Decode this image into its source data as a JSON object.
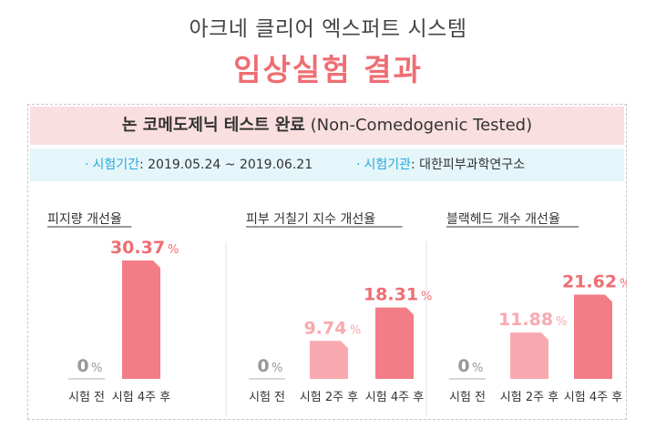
{
  "header": {
    "subtitle": "아크네 클리어 엑스퍼트 시스템",
    "title": "임상실험 결과"
  },
  "banner": {
    "bold": "논 코메도제닉 테스트 완료",
    "normal": "(Non-Comedogenic Tested)"
  },
  "info": {
    "period_label": "시험기간",
    "period_value": ": 2019.05.24 ~ 2019.06.21",
    "org_label": "시험기관",
    "org_value": ": 대한피부과학연구소"
  },
  "colors": {
    "accent": "#ee6e73",
    "bar_dark": "#f27d86",
    "bar_light": "#f8a9af",
    "info_bg": "#e5f6fb",
    "banner_bg": "#fadfe0",
    "label_blue": "#28a9d9"
  },
  "chart_data": [
    {
      "type": "bar",
      "title": "피지량 개선율",
      "categories": [
        "시험 전",
        "시험 4주 후"
      ],
      "values": [
        0,
        30.37
      ],
      "value_labels": [
        "0",
        "30.37"
      ],
      "unit": "%"
    },
    {
      "type": "bar",
      "title": "피부 거칠기 지수 개선율",
      "categories": [
        "시험 전",
        "시험 2주 후",
        "시험 4주 후"
      ],
      "values": [
        0,
        9.74,
        18.31
      ],
      "value_labels": [
        "0",
        "9.74",
        "18.31"
      ],
      "unit": "%"
    },
    {
      "type": "bar",
      "title": "블랙헤드 개수 개선율",
      "categories": [
        "시험 전",
        "시험 2주 후",
        "시험 4주 후"
      ],
      "values": [
        0,
        11.88,
        21.62
      ],
      "value_labels": [
        "0",
        "11.88",
        "21.62"
      ],
      "unit": "%"
    }
  ]
}
